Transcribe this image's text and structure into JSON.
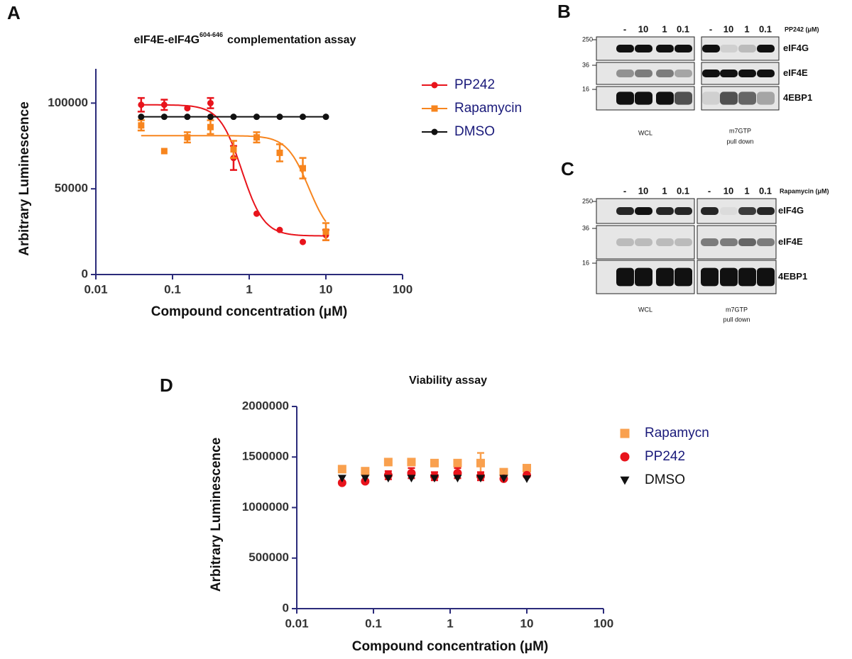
{
  "panels": [
    "A",
    "B",
    "C",
    "D"
  ],
  "chart_data": [
    {
      "type": "scatter",
      "title": "eIF4E-eIF4G",
      "title_superscript": "604-646",
      "title_end": "complementation assay",
      "x_label": "Compound concentration (μM)",
      "y_label": "Arbitrary Luminescence",
      "x": [
        0.039,
        0.078,
        0.156,
        0.3125,
        0.625,
        1.25,
        2.5,
        5,
        10
      ],
      "xlim": [
        0.01,
        100
      ],
      "xticks": [
        0.01,
        0.1,
        1,
        10,
        100
      ],
      "xscale": "log",
      "ylim": [
        0,
        120000
      ],
      "yticks": [
        0,
        50000,
        100000
      ],
      "series": [
        {
          "name": "PP242",
          "color": "#e8141c",
          "marker": "circle",
          "values": [
            99000,
            99000,
            97000,
            100000,
            68000,
            35500,
            26000,
            19000,
            23000
          ],
          "errors": [
            4000,
            3000,
            0,
            3000,
            7000,
            0,
            0,
            0,
            3000
          ],
          "fit": {
            "top": 99000,
            "bottom": 22500,
            "ec50": 0.8,
            "hill": 3
          }
        },
        {
          "name": "Rapamycin",
          "color": "#f7851e",
          "marker": "square",
          "values": [
            87000,
            72000,
            80000,
            86000,
            73000,
            80000,
            71000,
            62000,
            25000
          ],
          "errors": [
            3000,
            0,
            3000,
            4000,
            5000,
            3000,
            5000,
            6000,
            5000
          ],
          "fit": {
            "top": 81000,
            "bottom": 20000,
            "ec50": 6,
            "hill": 3
          }
        },
        {
          "name": "DMSO",
          "color": "#111111",
          "marker": "circle",
          "values": [
            92000,
            92000,
            92000,
            92000,
            92000,
            92000,
            92000,
            92000,
            92000
          ],
          "errors": [
            0,
            0,
            0,
            0,
            0,
            0,
            0,
            0,
            0
          ],
          "line": true
        }
      ]
    },
    {
      "type": "scatter",
      "title": "Viability assay",
      "x_label": "Compound concentration (μM)",
      "y_label": "Arbitrary Luminescence",
      "x": [
        0.039,
        0.078,
        0.156,
        0.3125,
        0.625,
        1.25,
        2.5,
        5,
        10
      ],
      "xlim": [
        0.01,
        100
      ],
      "xticks": [
        0.01,
        0.1,
        1,
        10,
        100
      ],
      "xscale": "log",
      "ylim": [
        0,
        2000000
      ],
      "yticks": [
        0,
        500000,
        1000000,
        1500000,
        2000000
      ],
      "series": [
        {
          "name": "Rapamycn",
          "color": "#f9a04e",
          "label_color": "#1a1a7a",
          "marker": "square",
          "values": [
            1380000,
            1360000,
            1450000,
            1450000,
            1440000,
            1440000,
            1440000,
            1350000,
            1390000
          ],
          "errors": [
            0,
            0,
            0,
            0,
            0,
            0,
            100000,
            0,
            0
          ]
        },
        {
          "name": "PP242",
          "color": "#e8141c",
          "label_color": "#1a1a7a",
          "marker": "circle",
          "values": [
            1245000,
            1260000,
            1320000,
            1340000,
            1310000,
            1340000,
            1310000,
            1285000,
            1320000
          ],
          "errors": [
            0,
            0,
            40000,
            50000,
            40000,
            50000,
            40000,
            0,
            0
          ]
        },
        {
          "name": "DMSO",
          "color": "#111111",
          "label_color": "#111111",
          "marker": "triangle",
          "values": [
            1290000,
            1290000,
            1290000,
            1290000,
            1290000,
            1290000,
            1290000,
            1290000,
            1285000
          ],
          "errors": [
            0,
            0,
            0,
            0,
            0,
            0,
            0,
            0,
            0
          ]
        }
      ]
    }
  ],
  "blots": [
    {
      "doses": [
        "-",
        "10",
        "1",
        "0.1",
        "-",
        "10",
        "1",
        "0.1"
      ],
      "treatment": "PP242 (μM)",
      "markers": [
        "250",
        "36",
        "16"
      ],
      "proteins": [
        "eIF4G",
        "eIF4E",
        "4EBP1"
      ],
      "lysate": "WCL",
      "pulldown": [
        "m7GTP",
        "pull down"
      ]
    },
    {
      "doses": [
        "-",
        "10",
        "1",
        "0.1",
        "-",
        "10",
        "1",
        "0.1"
      ],
      "treatment": "Rapamycin (μM)",
      "markers": [
        "250",
        "36",
        "16"
      ],
      "proteins": [
        "eIF4G",
        "eIF4E",
        "4EBP1"
      ],
      "lysate": "WCL",
      "pulldown": [
        "m7GTP",
        "pull down"
      ]
    }
  ]
}
